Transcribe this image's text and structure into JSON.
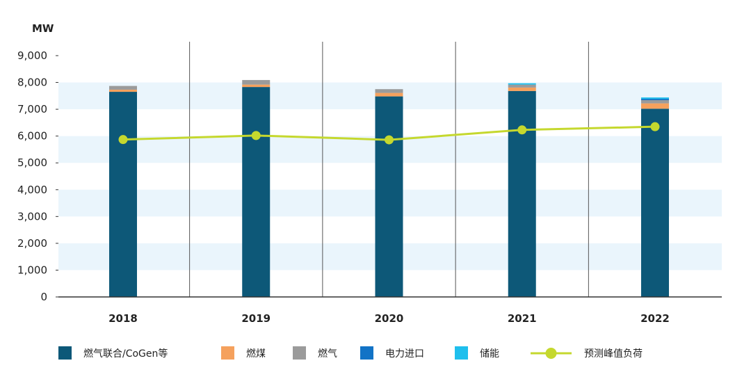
{
  "chart_data": {
    "type": "bar",
    "stacked": true,
    "ylabel": "MW",
    "ylim": [
      0,
      9000
    ],
    "yticks": [
      0,
      1000,
      2000,
      3000,
      4000,
      5000,
      6000,
      7000,
      8000,
      9000
    ],
    "ytick_labels": [
      "0",
      "1,000",
      "2,000",
      "3,000",
      "4,000",
      "5,000",
      "6,000",
      "7,000",
      "8,000",
      "9,000"
    ],
    "categories": [
      "2018",
      "2019",
      "2020",
      "2021",
      "2022"
    ],
    "grid": "alternating horizontal bands",
    "legend_position": "bottom",
    "series": [
      {
        "name": "燃气联合/CoGen等",
        "kind": "bar",
        "color": "#0d5878",
        "values": [
          7650,
          7830,
          7480,
          7680,
          7020
        ]
      },
      {
        "name": "燃煤",
        "kind": "bar",
        "color": "#f5a15d",
        "values": [
          80,
          90,
          130,
          130,
          200
        ]
      },
      {
        "name": "燃气",
        "kind": "bar",
        "color": "#9b9b9b",
        "values": [
          140,
          170,
          140,
          110,
          120
        ]
      },
      {
        "name": "电力进口",
        "kind": "bar",
        "color": "#1273c6",
        "values": [
          0,
          0,
          0,
          0,
          50
        ]
      },
      {
        "name": "储能",
        "kind": "bar",
        "color": "#1fbfed",
        "values": [
          0,
          0,
          0,
          50,
          50
        ]
      },
      {
        "name": "预测峰值负荷",
        "kind": "line",
        "color": "#c5d82e",
        "values": [
          5870,
          6020,
          5860,
          6230,
          6350
        ]
      }
    ]
  }
}
